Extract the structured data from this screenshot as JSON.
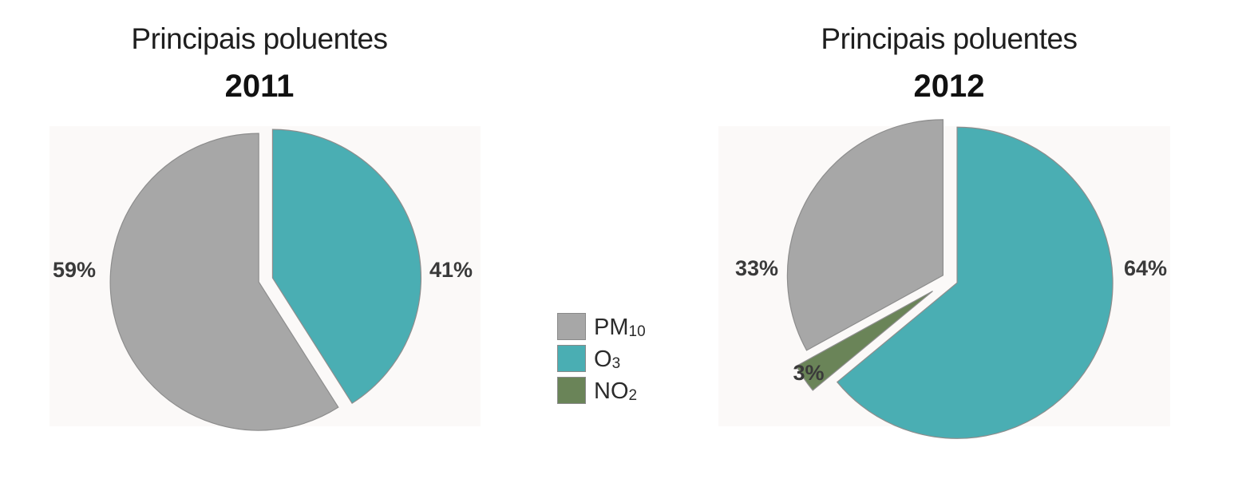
{
  "colors": {
    "PM10": "#a7a7a7",
    "O3": "#4aaeb3",
    "NO2": "#6a8458",
    "label": "#3a3a3a"
  },
  "legend": [
    {
      "key": "PM10",
      "main": "PM",
      "sub": "10"
    },
    {
      "key": "O3",
      "main": "O",
      "sub": "3"
    },
    {
      "key": "NO2",
      "main": "NO",
      "sub": "2"
    }
  ],
  "chart_data": [
    {
      "type": "pie",
      "title": "Principais poluentes",
      "subtitle": "2011",
      "slices": [
        {
          "label": "O3",
          "value": 41,
          "text": "41%"
        },
        {
          "label": "PM10",
          "value": 59,
          "text": "59%"
        }
      ]
    },
    {
      "type": "pie",
      "title": "Principais poluentes",
      "subtitle": "2012",
      "slices": [
        {
          "label": "O3",
          "value": 64,
          "text": "64%"
        },
        {
          "label": "NO2",
          "value": 3,
          "text": "3%"
        },
        {
          "label": "PM10",
          "value": 33,
          "text": "33%"
        }
      ]
    }
  ]
}
